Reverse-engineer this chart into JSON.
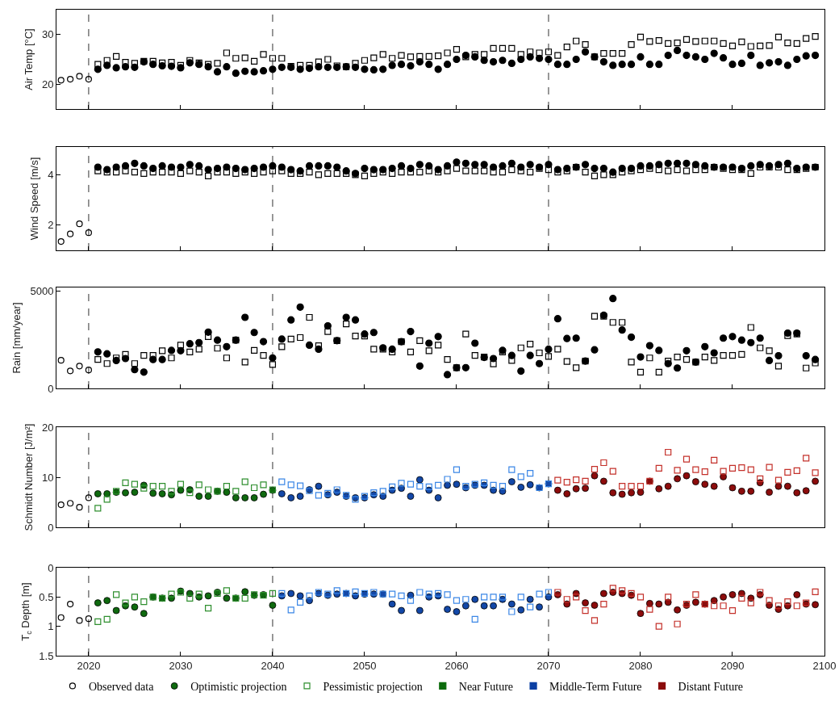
{
  "chart_data": [
    {
      "type": "scatter",
      "ylabel": "Air Temp [°C]",
      "xlim": [
        2016.5,
        2100
      ],
      "xticks": [
        2020,
        2030,
        2040,
        2050,
        2060,
        2070,
        2080,
        2090,
        2100
      ],
      "ylim": [
        15,
        35
      ],
      "yticks": [
        20,
        30
      ],
      "grid": false,
      "tick_labels": "y",
      "x": [
        2021,
        2022,
        2023,
        2024,
        2025,
        2026,
        2027,
        2028,
        2029,
        2030,
        2031,
        2032,
        2033,
        2034,
        2035,
        2036,
        2037,
        2038,
        2039,
        2040,
        2041,
        2042,
        2043,
        2044,
        2045,
        2046,
        2047,
        2048,
        2049,
        2050,
        2051,
        2052,
        2053,
        2054,
        2055,
        2056,
        2057,
        2058,
        2059,
        2060,
        2061,
        2062,
        2063,
        2064,
        2065,
        2066,
        2067,
        2068,
        2069,
        2070,
        2071,
        2072,
        2073,
        2074,
        2075,
        2076,
        2077,
        2078,
        2079,
        2080,
        2081,
        2082,
        2083,
        2084,
        2085,
        2086,
        2087,
        2088,
        2089,
        2090,
        2091,
        2092,
        2093,
        2094,
        2095,
        2096,
        2097,
        2098,
        2099
      ],
      "ref_lines": [
        {
          "axis": "x",
          "value": 2020,
          "line_style": "dashed",
          "color": "#555555"
        },
        {
          "axis": "x",
          "value": 2040,
          "line_style": "dashed",
          "color": "#555555"
        },
        {
          "axis": "x",
          "value": 2070,
          "line_style": "dashed",
          "color": "#555555"
        }
      ],
      "series": [
        {
          "x": [
            2017,
            2018,
            2019,
            2020
          ],
          "values": [
            20.8,
            21,
            21.6,
            21
          ],
          "color": "#000000",
          "marker": "circle-open"
        },
        {
          "values": [
            23.0,
            23.8,
            23.3,
            23.5,
            23.4,
            24.5,
            24.0,
            23.7,
            23.6,
            23.3,
            24.3,
            24.0,
            23.5,
            22.5,
            23.5,
            22.2,
            22.6,
            22.5,
            22.7,
            23.0,
            23.4,
            23.4,
            23.0,
            23.2,
            23.5,
            23.4,
            23.4,
            23.5,
            23.4,
            23.0,
            22.9,
            23.0,
            23.8,
            24.0,
            23.7,
            24.5,
            24.0,
            23.0,
            24.0,
            25.0,
            25.8,
            25.5,
            24.8,
            24.5,
            24.8,
            24.2,
            25.0,
            25.5,
            25.2,
            25.0,
            24.0,
            24.0,
            25.0,
            26.5,
            25.5,
            24.5,
            23.8,
            24.0,
            24.0,
            25.5,
            24.0,
            24.0,
            25.8,
            26.8,
            25.8,
            25.5,
            25.0,
            26.2,
            25.3,
            24.0,
            24.2,
            25.8,
            23.8,
            24.3,
            24.5,
            23.8,
            25.0,
            25.7,
            25.8
          ],
          "color": "#000000",
          "marker": "circle"
        },
        {
          "values": [
            24.0,
            24.8,
            25.6,
            24.4,
            24.2,
            24.6,
            24.6,
            24.3,
            24.4,
            23.8,
            24.8,
            24.3,
            24.0,
            24.2,
            26.3,
            25.2,
            25.3,
            24.6,
            26.0,
            25.2,
            25.2,
            23.6,
            23.8,
            23.8,
            24.5,
            25.0,
            23.7,
            23.5,
            24.2,
            24.8,
            25.3,
            26.0,
            25.2,
            25.8,
            25.5,
            25.6,
            25.6,
            25.7,
            26.3,
            27.0,
            25.5,
            26.0,
            26.0,
            27.2,
            27.2,
            27.2,
            26.0,
            26.5,
            26.3,
            26.5,
            25.8,
            27.5,
            28.7,
            28.0,
            25.5,
            26.2,
            26.2,
            26.2,
            28.0,
            29.5,
            28.6,
            28.8,
            28.2,
            28.3,
            29.0,
            28.6,
            28.7,
            28.7,
            28.2,
            27.7,
            28.5,
            27.6,
            27.7,
            27.8,
            29.5,
            28.3,
            28.2,
            29.2,
            29.6
          ],
          "color": "#000000",
          "marker": "square-open"
        }
      ]
    },
    {
      "type": "scatter",
      "ylabel": "Wind Speed [m/s]",
      "xlim": [
        2016.5,
        2100
      ],
      "xticks": [
        2020,
        2030,
        2040,
        2050,
        2060,
        2070,
        2080,
        2090,
        2100
      ],
      "ylim": [
        1,
        5.1
      ],
      "yticks": [
        2,
        4
      ],
      "grid": false,
      "tick_labels": "y",
      "x": [
        2021,
        2022,
        2023,
        2024,
        2025,
        2026,
        2027,
        2028,
        2029,
        2030,
        2031,
        2032,
        2033,
        2034,
        2035,
        2036,
        2037,
        2038,
        2039,
        2040,
        2041,
        2042,
        2043,
        2044,
        2045,
        2046,
        2047,
        2048,
        2049,
        2050,
        2051,
        2052,
        2053,
        2054,
        2055,
        2056,
        2057,
        2058,
        2059,
        2060,
        2061,
        2062,
        2063,
        2064,
        2065,
        2066,
        2067,
        2068,
        2069,
        2070,
        2071,
        2072,
        2073,
        2074,
        2075,
        2076,
        2077,
        2078,
        2079,
        2080,
        2081,
        2082,
        2083,
        2084,
        2085,
        2086,
        2087,
        2088,
        2089,
        2090,
        2091,
        2092,
        2093,
        2094,
        2095,
        2096,
        2097,
        2098,
        2099
      ],
      "ref_lines": [
        {
          "axis": "x",
          "value": 2020,
          "line_style": "dashed",
          "color": "#555555"
        },
        {
          "axis": "x",
          "value": 2040,
          "line_style": "dashed",
          "color": "#555555"
        },
        {
          "axis": "x",
          "value": 2070,
          "line_style": "dashed",
          "color": "#555555"
        }
      ],
      "series": [
        {
          "x": [
            2017,
            2018,
            2019,
            2020
          ],
          "values": [
            1.35,
            1.65,
            2.05,
            1.7
          ],
          "color": "#000000",
          "marker": "circle-open"
        },
        {
          "values": [
            4.3,
            4.2,
            4.3,
            4.35,
            4.45,
            4.35,
            4.25,
            4.35,
            4.3,
            4.3,
            4.4,
            4.35,
            4.2,
            4.25,
            4.3,
            4.25,
            4.2,
            4.25,
            4.3,
            4.35,
            4.3,
            4.2,
            4.15,
            4.35,
            4.35,
            4.35,
            4.3,
            4.15,
            4.05,
            4.25,
            4.2,
            4.2,
            4.25,
            4.35,
            4.25,
            4.4,
            4.35,
            4.2,
            4.35,
            4.5,
            4.45,
            4.4,
            4.4,
            4.3,
            4.35,
            4.45,
            4.3,
            4.4,
            4.3,
            4.4,
            4.2,
            4.25,
            4.3,
            4.4,
            4.25,
            4.25,
            4.1,
            4.25,
            4.25,
            4.35,
            4.35,
            4.4,
            4.45,
            4.45,
            4.45,
            4.4,
            4.35,
            4.3,
            4.3,
            4.3,
            4.25,
            4.35,
            4.4,
            4.35,
            4.4,
            4.45,
            4.25,
            4.3,
            4.3
          ],
          "color": "#000000",
          "marker": "circle"
        },
        {
          "values": [
            4.15,
            4.1,
            4.1,
            4.15,
            4.1,
            4.05,
            4.1,
            4.1,
            4.1,
            4.05,
            4.15,
            4.1,
            3.95,
            4.1,
            4.1,
            4.05,
            4.1,
            4.05,
            4.1,
            4.15,
            4.15,
            4.05,
            4.05,
            4.1,
            4.0,
            4.05,
            4.05,
            4.05,
            4.0,
            3.95,
            4.05,
            4.1,
            4.05,
            4.1,
            4.1,
            4.1,
            4.15,
            4.1,
            4.15,
            4.25,
            4.15,
            4.15,
            4.15,
            4.1,
            4.1,
            4.2,
            4.15,
            4.1,
            4.25,
            4.2,
            4.1,
            4.15,
            4.3,
            4.1,
            3.95,
            4.0,
            4.0,
            4.1,
            4.15,
            4.2,
            4.25,
            4.2,
            4.15,
            4.2,
            4.15,
            4.2,
            4.2,
            4.3,
            4.25,
            4.2,
            4.2,
            4.05,
            4.3,
            4.3,
            4.3,
            4.2,
            4.2,
            4.25,
            4.3
          ],
          "color": "#000000",
          "marker": "square-open"
        }
      ]
    },
    {
      "type": "scatter",
      "ylabel": "Rain [mm/year]",
      "xlim": [
        2016.5,
        2100
      ],
      "xticks": [
        2020,
        2030,
        2040,
        2050,
        2060,
        2070,
        2080,
        2090,
        2100
      ],
      "ylim": [
        0,
        5200
      ],
      "yticks": [
        0,
        5000
      ],
      "grid": false,
      "tick_labels": "y",
      "x": [
        2021,
        2022,
        2023,
        2024,
        2025,
        2026,
        2027,
        2028,
        2029,
        2030,
        2031,
        2032,
        2033,
        2034,
        2035,
        2036,
        2037,
        2038,
        2039,
        2040,
        2041,
        2042,
        2043,
        2044,
        2045,
        2046,
        2047,
        2048,
        2049,
        2050,
        2051,
        2052,
        2053,
        2054,
        2055,
        2056,
        2057,
        2058,
        2059,
        2060,
        2061,
        2062,
        2063,
        2064,
        2065,
        2066,
        2067,
        2068,
        2069,
        2070,
        2071,
        2072,
        2073,
        2074,
        2075,
        2076,
        2077,
        2078,
        2079,
        2080,
        2081,
        2082,
        2083,
        2084,
        2085,
        2086,
        2087,
        2088,
        2089,
        2090,
        2091,
        2092,
        2093,
        2094,
        2095,
        2096,
        2097,
        2098,
        2099
      ],
      "ref_lines": [
        {
          "axis": "x",
          "value": 2020,
          "line_style": "dashed",
          "color": "#555555"
        },
        {
          "axis": "x",
          "value": 2040,
          "line_style": "dashed",
          "color": "#555555"
        },
        {
          "axis": "x",
          "value": 2070,
          "line_style": "dashed",
          "color": "#555555"
        }
      ],
      "series": [
        {
          "x": [
            2017,
            2018,
            2019,
            2020
          ],
          "values": [
            1450,
            900,
            1150,
            950
          ],
          "color": "#000000",
          "marker": "circle-open"
        },
        {
          "values": [
            1880,
            1780,
            1440,
            1540,
            970,
            840,
            1490,
            1490,
            1960,
            1940,
            2300,
            2360,
            2900,
            2490,
            2150,
            2490,
            3660,
            2880,
            2410,
            1570,
            2540,
            3530,
            4190,
            2230,
            2020,
            3220,
            2460,
            3660,
            3530,
            2800,
            2880,
            2090,
            2020,
            2410,
            2930,
            1150,
            2330,
            2670,
            710,
            1070,
            1070,
            2330,
            1600,
            1540,
            1960,
            1700,
            890,
            1700,
            1280,
            2020,
            3590,
            2570,
            2590,
            1410,
            1990,
            3770,
            4630,
            3010,
            2640,
            1620,
            2200,
            1960,
            1280,
            1050,
            1940,
            1360,
            2150,
            1830,
            2590,
            2670,
            2490,
            2360,
            2590,
            1440,
            1680,
            2850,
            2850,
            1680,
            1490
          ],
          "color": "#000000",
          "marker": "circle"
        },
        {
          "values": [
            1490,
            1280,
            1570,
            1750,
            1280,
            1700,
            1700,
            1940,
            1570,
            2230,
            1880,
            2020,
            2670,
            2070,
            1570,
            2490,
            1360,
            1960,
            1700,
            1230,
            2150,
            2540,
            2620,
            3660,
            2200,
            2930,
            2460,
            3320,
            2700,
            2700,
            2020,
            2020,
            1880,
            2410,
            1880,
            2460,
            1940,
            2230,
            1490,
            1070,
            2800,
            1700,
            1620,
            1260,
            1880,
            1440,
            2090,
            2280,
            1830,
            1650,
            2020,
            1390,
            1070,
            1410,
            3720,
            3720,
            3400,
            3400,
            1360,
            840,
            1570,
            840,
            1410,
            1620,
            1490,
            1360,
            1620,
            1440,
            1700,
            1700,
            1750,
            3140,
            2090,
            1940,
            1150,
            2720,
            2800,
            1050,
            1310
          ],
          "color": "#000000",
          "marker": "square-open"
        }
      ]
    },
    {
      "type": "scatter",
      "ylabel": "Schmidt Number [J/m²]",
      "xlim": [
        2016.5,
        2100
      ],
      "xticks": [
        2020,
        2030,
        2040,
        2050,
        2060,
        2070,
        2080,
        2090,
        2100
      ],
      "ylim": [
        0,
        20
      ],
      "yticks": [
        0,
        10,
        20
      ],
      "grid": false,
      "tick_labels": "y",
      "x": [
        2021,
        2022,
        2023,
        2024,
        2025,
        2026,
        2027,
        2028,
        2029,
        2030,
        2031,
        2032,
        2033,
        2034,
        2035,
        2036,
        2037,
        2038,
        2039,
        2040,
        2041,
        2042,
        2043,
        2044,
        2045,
        2046,
        2047,
        2048,
        2049,
        2050,
        2051,
        2052,
        2053,
        2054,
        2055,
        2056,
        2057,
        2058,
        2059,
        2060,
        2061,
        2062,
        2063,
        2064,
        2065,
        2066,
        2067,
        2068,
        2069,
        2070,
        2071,
        2072,
        2073,
        2074,
        2075,
        2076,
        2077,
        2078,
        2079,
        2080,
        2081,
        2082,
        2083,
        2084,
        2085,
        2086,
        2087,
        2088,
        2089,
        2090,
        2091,
        2092,
        2093,
        2094,
        2095,
        2096,
        2097,
        2098,
        2099
      ],
      "ref_lines": [
        {
          "axis": "x",
          "value": 2020,
          "line_style": "dashed",
          "color": "#555555"
        },
        {
          "axis": "x",
          "value": 2040,
          "line_style": "dashed",
          "color": "#555555"
        },
        {
          "axis": "x",
          "value": 2070,
          "line_style": "dashed",
          "color": "#555555"
        }
      ],
      "series": [
        {
          "x": [
            2017,
            2018,
            2019,
            2020
          ],
          "values": [
            4.5,
            4.8,
            4.0,
            5.9
          ],
          "color": "#000000",
          "marker": "circle-open"
        },
        {
          "values": [
            6.7,
            6.7,
            7.0,
            6.9,
            7.0,
            8.4,
            6.8,
            6.7,
            6.5,
            7.4,
            7.5,
            6.2,
            6.2,
            7.2,
            7.0,
            5.9,
            5.9,
            5.9,
            6.6,
            7.4,
            6.7,
            5.9,
            6.2,
            7.5,
            8.2,
            6.5,
            7.0,
            6.2,
            5.9,
            5.9,
            6.5,
            6.2,
            7.4,
            7.8,
            6.2,
            9.5,
            7.4,
            5.9,
            8.4,
            8.6,
            7.9,
            8.4,
            8.4,
            7.4,
            7.2,
            9.1,
            8.0,
            8.5,
            7.9,
            8.7,
            7.4,
            6.7,
            7.7,
            7.8,
            10.3,
            9.2,
            6.9,
            6.6,
            6.9,
            7.0,
            9.2,
            7.7,
            8.2,
            9.7,
            10.3,
            9.1,
            8.6,
            8.2,
            10.1,
            7.9,
            7.2,
            7.2,
            8.9,
            7.0,
            8.2,
            8.2,
            6.9,
            7.3,
            9.2
          ],
          "marker": "circle",
          "colors": [
            "#0f6a0f",
            "#0f6a0f",
            "#0f6a0f",
            "#0f6a0f",
            "#0f6a0f",
            "#0f6a0f",
            "#0f6a0f",
            "#0f6a0f",
            "#0f6a0f",
            "#0f6a0f",
            "#0f6a0f",
            "#0f6a0f",
            "#0f6a0f",
            "#0f6a0f",
            "#0f6a0f",
            "#0f6a0f",
            "#0f6a0f",
            "#0f6a0f",
            "#0f6a0f",
            "#0f6a0f",
            "#1348a8",
            "#1348a8",
            "#1348a8",
            "#1348a8",
            "#1348a8",
            "#1348a8",
            "#1348a8",
            "#1348a8",
            "#1348a8",
            "#1348a8",
            "#1348a8",
            "#1348a8",
            "#1348a8",
            "#1348a8",
            "#1348a8",
            "#1348a8",
            "#1348a8",
            "#1348a8",
            "#1348a8",
            "#1348a8",
            "#1348a8",
            "#1348a8",
            "#1348a8",
            "#1348a8",
            "#1348a8",
            "#1348a8",
            "#1348a8",
            "#1348a8",
            "#1348a8",
            "#1348a8",
            "#8c0c0c",
            "#8c0c0c",
            "#8c0c0c",
            "#8c0c0c",
            "#8c0c0c",
            "#8c0c0c",
            "#8c0c0c",
            "#8c0c0c",
            "#8c0c0c",
            "#8c0c0c",
            "#8c0c0c",
            "#8c0c0c",
            "#8c0c0c",
            "#8c0c0c",
            "#8c0c0c",
            "#8c0c0c",
            "#8c0c0c",
            "#8c0c0c",
            "#8c0c0c",
            "#8c0c0c",
            "#8c0c0c",
            "#8c0c0c",
            "#8c0c0c",
            "#8c0c0c",
            "#8c0c0c",
            "#8c0c0c",
            "#8c0c0c",
            "#8c0c0c",
            "#8c0c0c"
          ]
        },
        {
          "values": [
            3.8,
            5.6,
            7.2,
            8.9,
            8.6,
            7.8,
            8.2,
            8.2,
            7.2,
            8.6,
            6.9,
            8.5,
            7.5,
            7.2,
            8.2,
            7.2,
            9.1,
            7.9,
            8.5,
            7.5,
            9.1,
            8.5,
            8.3,
            7.3,
            6.4,
            6.8,
            7.5,
            6.4,
            5.6,
            6.2,
            6.9,
            7.2,
            8.1,
            8.8,
            8.6,
            8.2,
            8.1,
            8.4,
            9.6,
            11.5,
            8.2,
            8.6,
            8.9,
            8.4,
            8.2,
            11.5,
            10.1,
            10.8,
            7.9,
            8.7,
            9.4,
            9.0,
            9.5,
            9.2,
            11.6,
            12.9,
            11.2,
            8.2,
            8.2,
            8.2,
            9.2,
            11.8,
            15.0,
            11.4,
            13.6,
            11.5,
            11.1,
            13.4,
            11.2,
            11.8,
            11.9,
            11.5,
            9.7,
            12.0,
            9.4,
            11.0,
            11.3,
            13.8,
            10.9
          ],
          "marker": "square-open",
          "colors": [
            "#2f8f2f",
            "#2f8f2f",
            "#2f8f2f",
            "#2f8f2f",
            "#2f8f2f",
            "#2f8f2f",
            "#2f8f2f",
            "#2f8f2f",
            "#2f8f2f",
            "#2f8f2f",
            "#2f8f2f",
            "#2f8f2f",
            "#2f8f2f",
            "#2f8f2f",
            "#2f8f2f",
            "#2f8f2f",
            "#2f8f2f",
            "#2f8f2f",
            "#2f8f2f",
            "#2f8f2f",
            "#3a86e6",
            "#3a86e6",
            "#3a86e6",
            "#3a86e6",
            "#3a86e6",
            "#3a86e6",
            "#3a86e6",
            "#3a86e6",
            "#3a86e6",
            "#3a86e6",
            "#3a86e6",
            "#3a86e6",
            "#3a86e6",
            "#3a86e6",
            "#3a86e6",
            "#3a86e6",
            "#3a86e6",
            "#3a86e6",
            "#3a86e6",
            "#3a86e6",
            "#3a86e6",
            "#3a86e6",
            "#3a86e6",
            "#3a86e6",
            "#3a86e6",
            "#3a86e6",
            "#3a86e6",
            "#3a86e6",
            "#3a86e6",
            "#3a86e6",
            "#c4302a",
            "#c4302a",
            "#c4302a",
            "#c4302a",
            "#c4302a",
            "#c4302a",
            "#c4302a",
            "#c4302a",
            "#c4302a",
            "#c4302a",
            "#c4302a",
            "#c4302a",
            "#c4302a",
            "#c4302a",
            "#c4302a",
            "#c4302a",
            "#c4302a",
            "#c4302a",
            "#c4302a",
            "#c4302a",
            "#c4302a",
            "#c4302a",
            "#c4302a",
            "#c4302a",
            "#c4302a",
            "#c4302a",
            "#c4302a",
            "#c4302a",
            "#c4302a"
          ]
        }
      ]
    },
    {
      "type": "scatter",
      "ylabel": "T$_{c}$ Depth [m]",
      "xlim": [
        2016.5,
        2100
      ],
      "xticks": [
        2020,
        2030,
        2040,
        2050,
        2060,
        2070,
        2080,
        2090,
        2100
      ],
      "ylim": [
        1.5,
        0
      ],
      "yticks": [
        0,
        0.5,
        1,
        1.5
      ],
      "grid": false,
      "legend": "bottom",
      "x": [
        2021,
        2022,
        2023,
        2024,
        2025,
        2026,
        2027,
        2028,
        2029,
        2030,
        2031,
        2032,
        2033,
        2034,
        2035,
        2036,
        2037,
        2038,
        2039,
        2040,
        2041,
        2042,
        2043,
        2044,
        2045,
        2046,
        2047,
        2048,
        2049,
        2050,
        2051,
        2052,
        2053,
        2054,
        2055,
        2056,
        2057,
        2058,
        2059,
        2060,
        2061,
        2062,
        2063,
        2064,
        2065,
        2066,
        2067,
        2068,
        2069,
        2070,
        2071,
        2072,
        2073,
        2074,
        2075,
        2076,
        2077,
        2078,
        2079,
        2080,
        2081,
        2082,
        2083,
        2084,
        2085,
        2086,
        2087,
        2088,
        2089,
        2090,
        2091,
        2092,
        2093,
        2094,
        2095,
        2096,
        2097,
        2098,
        2099
      ],
      "ref_lines": [
        {
          "axis": "x",
          "value": 2020,
          "line_style": "dashed",
          "color": "#555555"
        },
        {
          "axis": "x",
          "value": 2040,
          "line_style": "dashed",
          "color": "#555555"
        },
        {
          "axis": "x",
          "value": 2070,
          "line_style": "dashed",
          "color": "#555555"
        }
      ],
      "series": [
        {
          "name": "Observed data",
          "x": [
            2017,
            2018,
            2019,
            2020
          ],
          "values": [
            0.85,
            0.62,
            0.9,
            0.87
          ],
          "color": "#000000",
          "marker": "circle-open"
        },
        {
          "name": "Optimistic projection",
          "values": [
            0.6,
            0.56,
            0.73,
            0.65,
            0.67,
            0.78,
            0.5,
            0.52,
            0.52,
            0.4,
            0.44,
            0.5,
            0.48,
            0.42,
            0.52,
            0.52,
            0.41,
            0.47,
            0.46,
            0.64,
            0.48,
            0.44,
            0.48,
            0.56,
            0.44,
            0.47,
            0.45,
            0.44,
            0.48,
            0.45,
            0.45,
            0.45,
            0.62,
            0.73,
            0.47,
            0.73,
            0.5,
            0.48,
            0.71,
            0.75,
            0.65,
            0.54,
            0.65,
            0.65,
            0.54,
            0.62,
            0.72,
            0.54,
            0.67,
            0.5,
            0.46,
            0.62,
            0.44,
            0.6,
            0.64,
            0.44,
            0.42,
            0.44,
            0.47,
            0.78,
            0.61,
            0.62,
            0.59,
            0.72,
            0.64,
            0.59,
            0.62,
            0.56,
            0.5,
            0.46,
            0.44,
            0.52,
            0.46,
            0.64,
            0.71,
            0.65,
            0.46,
            0.62,
            0.63
          ],
          "marker": "circle",
          "colors": [
            "#0f6a0f",
            "#0f6a0f",
            "#0f6a0f",
            "#0f6a0f",
            "#0f6a0f",
            "#0f6a0f",
            "#0f6a0f",
            "#0f6a0f",
            "#0f6a0f",
            "#0f6a0f",
            "#0f6a0f",
            "#0f6a0f",
            "#0f6a0f",
            "#0f6a0f",
            "#0f6a0f",
            "#0f6a0f",
            "#0f6a0f",
            "#0f6a0f",
            "#0f6a0f",
            "#0f6a0f",
            "#1348a8",
            "#1348a8",
            "#1348a8",
            "#1348a8",
            "#1348a8",
            "#1348a8",
            "#1348a8",
            "#1348a8",
            "#1348a8",
            "#1348a8",
            "#1348a8",
            "#1348a8",
            "#1348a8",
            "#1348a8",
            "#1348a8",
            "#1348a8",
            "#1348a8",
            "#1348a8",
            "#1348a8",
            "#1348a8",
            "#1348a8",
            "#1348a8",
            "#1348a8",
            "#1348a8",
            "#1348a8",
            "#1348a8",
            "#1348a8",
            "#1348a8",
            "#1348a8",
            "#1348a8",
            "#8c0c0c",
            "#8c0c0c",
            "#8c0c0c",
            "#8c0c0c",
            "#8c0c0c",
            "#8c0c0c",
            "#8c0c0c",
            "#8c0c0c",
            "#8c0c0c",
            "#8c0c0c",
            "#8c0c0c",
            "#8c0c0c",
            "#8c0c0c",
            "#8c0c0c",
            "#8c0c0c",
            "#8c0c0c",
            "#8c0c0c",
            "#8c0c0c",
            "#8c0c0c",
            "#8c0c0c",
            "#8c0c0c",
            "#8c0c0c",
            "#8c0c0c",
            "#8c0c0c",
            "#8c0c0c",
            "#8c0c0c",
            "#8c0c0c",
            "#8c0c0c",
            "#8c0c0c"
          ]
        },
        {
          "name": "Pessimistic projection",
          "values": [
            0.92,
            0.88,
            0.46,
            0.6,
            0.5,
            0.58,
            0.5,
            0.52,
            0.45,
            0.42,
            0.52,
            0.45,
            0.69,
            0.44,
            0.39,
            0.52,
            0.52,
            0.46,
            0.47,
            0.44,
            0.44,
            0.72,
            0.59,
            0.48,
            0.42,
            0.45,
            0.39,
            0.44,
            0.41,
            0.44,
            0.42,
            0.45,
            0.45,
            0.48,
            0.56,
            0.42,
            0.45,
            0.44,
            0.46,
            0.56,
            0.54,
            0.88,
            0.5,
            0.5,
            0.5,
            0.75,
            0.5,
            0.67,
            0.45,
            0.42,
            0.42,
            0.54,
            0.5,
            0.73,
            0.9,
            0.62,
            0.35,
            0.39,
            0.44,
            0.5,
            0.71,
            1.0,
            0.5,
            0.96,
            0.62,
            0.46,
            0.62,
            0.65,
            0.65,
            0.73,
            0.52,
            0.6,
            0.42,
            0.56,
            0.65,
            0.58,
            0.65,
            0.6,
            0.41
          ],
          "marker": "square-open",
          "colors": [
            "#2f8f2f",
            "#2f8f2f",
            "#2f8f2f",
            "#2f8f2f",
            "#2f8f2f",
            "#2f8f2f",
            "#2f8f2f",
            "#2f8f2f",
            "#2f8f2f",
            "#2f8f2f",
            "#2f8f2f",
            "#2f8f2f",
            "#2f8f2f",
            "#2f8f2f",
            "#2f8f2f",
            "#2f8f2f",
            "#2f8f2f",
            "#2f8f2f",
            "#2f8f2f",
            "#2f8f2f",
            "#3a86e6",
            "#3a86e6",
            "#3a86e6",
            "#3a86e6",
            "#3a86e6",
            "#3a86e6",
            "#3a86e6",
            "#3a86e6",
            "#3a86e6",
            "#3a86e6",
            "#3a86e6",
            "#3a86e6",
            "#3a86e6",
            "#3a86e6",
            "#3a86e6",
            "#3a86e6",
            "#3a86e6",
            "#3a86e6",
            "#3a86e6",
            "#3a86e6",
            "#3a86e6",
            "#3a86e6",
            "#3a86e6",
            "#3a86e6",
            "#3a86e6",
            "#3a86e6",
            "#3a86e6",
            "#3a86e6",
            "#3a86e6",
            "#3a86e6",
            "#c4302a",
            "#c4302a",
            "#c4302a",
            "#c4302a",
            "#c4302a",
            "#c4302a",
            "#c4302a",
            "#c4302a",
            "#c4302a",
            "#c4302a",
            "#c4302a",
            "#c4302a",
            "#c4302a",
            "#c4302a",
            "#c4302a",
            "#c4302a",
            "#c4302a",
            "#c4302a",
            "#c4302a",
            "#c4302a",
            "#c4302a",
            "#c4302a",
            "#c4302a",
            "#c4302a",
            "#c4302a",
            "#c4302a",
            "#c4302a",
            "#c4302a",
            "#c4302a"
          ]
        },
        {
          "name": "Near Future",
          "values": [
            null,
            null,
            null,
            null,
            null,
            null,
            null,
            null,
            null,
            null,
            null,
            null,
            null,
            null,
            null,
            null,
            null,
            null,
            null,
            null,
            null,
            null,
            null,
            null,
            null,
            null,
            null,
            null,
            null,
            null,
            null,
            null,
            null,
            null,
            null,
            null,
            null,
            null,
            null,
            null,
            null,
            null,
            null,
            null,
            null,
            null,
            null,
            null,
            null,
            null,
            null,
            null,
            null,
            null,
            null,
            null,
            null,
            null,
            null,
            null,
            null,
            null,
            null,
            null,
            null,
            null,
            null,
            null,
            null,
            null,
            null,
            null,
            null,
            null,
            null,
            null,
            null,
            null,
            null
          ],
          "color": "#0b6b0b",
          "marker": "square"
        },
        {
          "name": "Middle-Term Future",
          "values": [
            null,
            null,
            null,
            null,
            null,
            null,
            null,
            null,
            null,
            null,
            null,
            null,
            null,
            null,
            null,
            null,
            null,
            null,
            null,
            null,
            null,
            null,
            null,
            null,
            null,
            null,
            null,
            null,
            null,
            null,
            null,
            null,
            null,
            null,
            null,
            null,
            null,
            null,
            null,
            null,
            null,
            null,
            null,
            null,
            null,
            null,
            null,
            null,
            null,
            null,
            null,
            null,
            null,
            null,
            null,
            null,
            null,
            null,
            null,
            null,
            null,
            null,
            null,
            null,
            null,
            null,
            null,
            null,
            null,
            null,
            null,
            null,
            null,
            null,
            null,
            null,
            null,
            null,
            null
          ],
          "color": "#0b3fa3",
          "marker": "square"
        },
        {
          "name": "Distant Future",
          "values": [
            null,
            null,
            null,
            null,
            null,
            null,
            null,
            null,
            null,
            null,
            null,
            null,
            null,
            null,
            null,
            null,
            null,
            null,
            null,
            null,
            null,
            null,
            null,
            null,
            null,
            null,
            null,
            null,
            null,
            null,
            null,
            null,
            null,
            null,
            null,
            null,
            null,
            null,
            null,
            null,
            null,
            null,
            null,
            null,
            null,
            null,
            null,
            null,
            null,
            null,
            null,
            null,
            null,
            null,
            null,
            null,
            null,
            null,
            null,
            null,
            null,
            null,
            null,
            null,
            null,
            null,
            null,
            null,
            null,
            null,
            null,
            null,
            null,
            null,
            null,
            null,
            null,
            null,
            null
          ],
          "color": "#8b0b0b",
          "marker": "square"
        }
      ]
    }
  ]
}
